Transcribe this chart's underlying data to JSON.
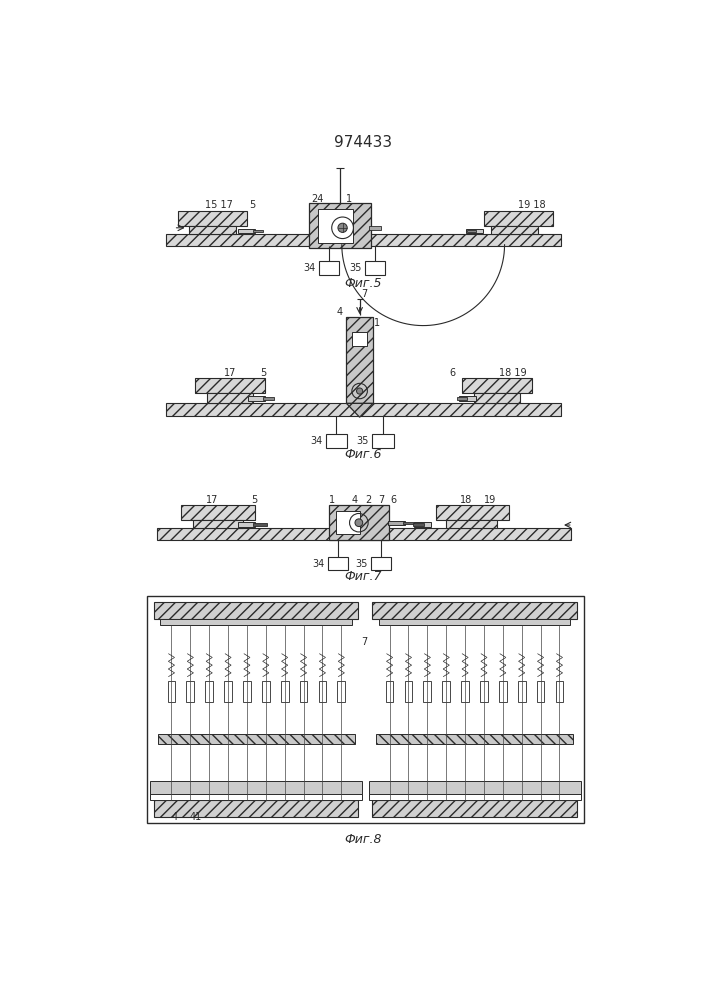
{
  "title": "974433",
  "title_fontsize": 11,
  "fig5_label": "Фиг.5",
  "fig6_label": "Фиг.6",
  "fig7_label": "Фиг.7",
  "fig8_label": "Фиг.8",
  "line_color": "#2a2a2a",
  "hatch_light": "#d8d8d8",
  "hatch_dark": "#aaaaaa"
}
